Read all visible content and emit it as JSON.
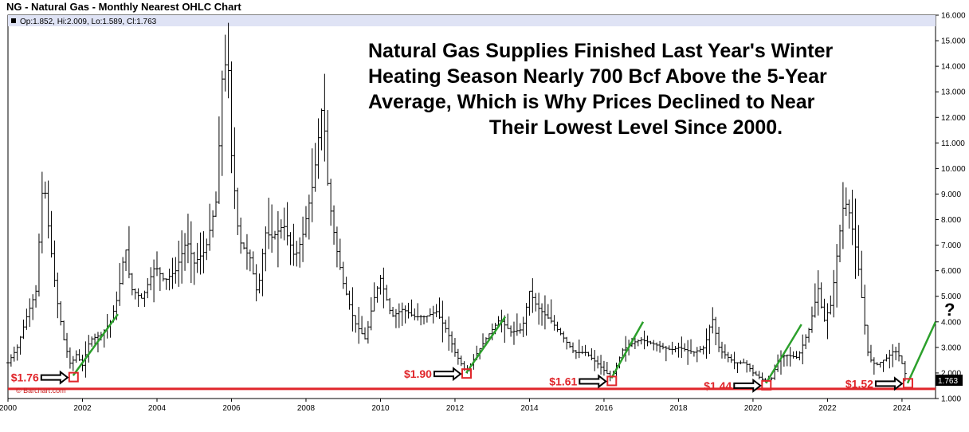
{
  "header": {
    "title": "NG - Natural Gas - Monthly Nearest OHLC Chart",
    "ohlc_readout": "Op:1.852, Hi:2.009, Lo:1.589, Cl:1.763",
    "watermark": "© Barchart.com"
  },
  "headline": {
    "line1": "Natural Gas Supplies Finished Last Year's Winter",
    "line2": "Heating Season Nearly 700 Bcf Above the 5-Year",
    "line3": "Average, Which is Why Prices Declined to Near",
    "line4": "Their Lowest Level Since 2000."
  },
  "colors": {
    "bars": "#000000",
    "support_line": "#e0262b",
    "trend": "#2ca02c",
    "labels": "#e0262b",
    "legend_bg": "#dfe3f5"
  },
  "chart_data": {
    "type": "ohlc",
    "title": "NG - Natural Gas - Monthly Nearest OHLC Chart",
    "xlabel": "",
    "ylabel": "",
    "xlim": [
      2000.0,
      2024.9
    ],
    "ylim": [
      1.0,
      16.0
    ],
    "yticks": [
      "1.000",
      "2.000",
      "3.000",
      "4.000",
      "5.000",
      "6.000",
      "7.000",
      "8.000",
      "9.000",
      "10.000",
      "11.000",
      "12.000",
      "13.000",
      "14.000",
      "15.000",
      "16.000"
    ],
    "xticks": [
      "2000",
      "2002",
      "2004",
      "2006",
      "2008",
      "2010",
      "2012",
      "2014",
      "2016",
      "2018",
      "2020",
      "2022",
      "2024"
    ],
    "last_price": "1.763",
    "support_level": 1.44,
    "grid": false,
    "series": [
      {
        "t": 2000.0,
        "v": 2.4
      },
      {
        "t": 2000.25,
        "v": 3.0
      },
      {
        "t": 2000.5,
        "v": 4.2
      },
      {
        "t": 2000.75,
        "v": 5.2
      },
      {
        "t": 2000.95,
        "v": 9.8
      },
      {
        "t": 2001.1,
        "v": 7.5
      },
      {
        "t": 2001.3,
        "v": 5.0
      },
      {
        "t": 2001.5,
        "v": 3.3
      },
      {
        "t": 2001.7,
        "v": 2.2
      },
      {
        "t": 2001.8,
        "v": 2.8
      },
      {
        "t": 2002.0,
        "v": 2.3
      },
      {
        "t": 2002.2,
        "v": 3.3
      },
      {
        "t": 2002.5,
        "v": 3.5
      },
      {
        "t": 2002.75,
        "v": 4.0
      },
      {
        "t": 2002.95,
        "v": 5.0
      },
      {
        "t": 2003.15,
        "v": 7.0
      },
      {
        "t": 2003.3,
        "v": 5.3
      },
      {
        "t": 2003.6,
        "v": 4.9
      },
      {
        "t": 2003.95,
        "v": 6.2
      },
      {
        "t": 2004.2,
        "v": 5.6
      },
      {
        "t": 2004.5,
        "v": 6.0
      },
      {
        "t": 2004.8,
        "v": 7.2
      },
      {
        "t": 2005.0,
        "v": 6.3
      },
      {
        "t": 2005.3,
        "v": 6.8
      },
      {
        "t": 2005.6,
        "v": 8.8
      },
      {
        "t": 2005.75,
        "v": 13.5
      },
      {
        "t": 2005.9,
        "v": 14.5
      },
      {
        "t": 2006.0,
        "v": 10.5
      },
      {
        "t": 2006.2,
        "v": 7.2
      },
      {
        "t": 2006.5,
        "v": 6.5
      },
      {
        "t": 2006.7,
        "v": 5.0
      },
      {
        "t": 2006.9,
        "v": 7.5
      },
      {
        "t": 2007.1,
        "v": 7.3
      },
      {
        "t": 2007.4,
        "v": 7.8
      },
      {
        "t": 2007.7,
        "v": 6.5
      },
      {
        "t": 2007.9,
        "v": 7.3
      },
      {
        "t": 2008.2,
        "v": 9.5
      },
      {
        "t": 2008.45,
        "v": 12.7
      },
      {
        "t": 2008.6,
        "v": 9.0
      },
      {
        "t": 2008.8,
        "v": 7.0
      },
      {
        "t": 2009.0,
        "v": 5.5
      },
      {
        "t": 2009.3,
        "v": 4.0
      },
      {
        "t": 2009.6,
        "v": 3.3
      },
      {
        "t": 2009.8,
        "v": 4.8
      },
      {
        "t": 2010.0,
        "v": 5.7
      },
      {
        "t": 2010.3,
        "v": 4.2
      },
      {
        "t": 2010.6,
        "v": 4.5
      },
      {
        "t": 2010.9,
        "v": 4.2
      },
      {
        "t": 2011.2,
        "v": 4.2
      },
      {
        "t": 2011.5,
        "v": 4.4
      },
      {
        "t": 2011.8,
        "v": 3.6
      },
      {
        "t": 2012.0,
        "v": 2.8
      },
      {
        "t": 2012.3,
        "v": 2.0
      },
      {
        "t": 2012.6,
        "v": 2.8
      },
      {
        "t": 2012.9,
        "v": 3.5
      },
      {
        "t": 2013.2,
        "v": 4.1
      },
      {
        "t": 2013.5,
        "v": 3.6
      },
      {
        "t": 2013.8,
        "v": 3.7
      },
      {
        "t": 2014.0,
        "v": 5.2
      },
      {
        "t": 2014.2,
        "v": 4.6
      },
      {
        "t": 2014.6,
        "v": 4.0
      },
      {
        "t": 2014.9,
        "v": 3.4
      },
      {
        "t": 2015.2,
        "v": 2.8
      },
      {
        "t": 2015.5,
        "v": 2.8
      },
      {
        "t": 2015.8,
        "v": 2.4
      },
      {
        "t": 2016.0,
        "v": 2.1
      },
      {
        "t": 2016.2,
        "v": 1.8
      },
      {
        "t": 2016.5,
        "v": 2.9
      },
      {
        "t": 2016.8,
        "v": 3.2
      },
      {
        "t": 2017.0,
        "v": 3.3
      },
      {
        "t": 2017.4,
        "v": 3.1
      },
      {
        "t": 2017.8,
        "v": 2.9
      },
      {
        "t": 2018.0,
        "v": 3.0
      },
      {
        "t": 2018.4,
        "v": 2.8
      },
      {
        "t": 2018.7,
        "v": 3.0
      },
      {
        "t": 2018.9,
        "v": 4.2
      },
      {
        "t": 2019.1,
        "v": 2.9
      },
      {
        "t": 2019.5,
        "v": 2.4
      },
      {
        "t": 2019.8,
        "v": 2.4
      },
      {
        "t": 2020.0,
        "v": 2.0
      },
      {
        "t": 2020.3,
        "v": 1.7
      },
      {
        "t": 2020.5,
        "v": 1.8
      },
      {
        "t": 2020.7,
        "v": 2.6
      },
      {
        "t": 2020.9,
        "v": 2.7
      },
      {
        "t": 2021.2,
        "v": 2.6
      },
      {
        "t": 2021.5,
        "v": 3.7
      },
      {
        "t": 2021.75,
        "v": 5.3
      },
      {
        "t": 2021.9,
        "v": 4.0
      },
      {
        "t": 2022.1,
        "v": 4.7
      },
      {
        "t": 2022.3,
        "v": 7.2
      },
      {
        "t": 2022.45,
        "v": 8.8
      },
      {
        "t": 2022.6,
        "v": 8.2
      },
      {
        "t": 2022.8,
        "v": 6.5
      },
      {
        "t": 2022.95,
        "v": 4.5
      },
      {
        "t": 2023.1,
        "v": 2.6
      },
      {
        "t": 2023.3,
        "v": 2.3
      },
      {
        "t": 2023.6,
        "v": 2.6
      },
      {
        "t": 2023.8,
        "v": 2.9
      },
      {
        "t": 2023.95,
        "v": 2.6
      },
      {
        "t": 2024.1,
        "v": 1.9
      },
      {
        "t": 2024.15,
        "v": 1.76
      }
    ],
    "bottoms": [
      {
        "label": "$1.76",
        "t": 2001.75,
        "v": 1.76
      },
      {
        "label": "$1.90",
        "t": 2012.3,
        "v": 1.9
      },
      {
        "label": "$1.61",
        "t": 2016.2,
        "v": 1.61
      },
      {
        "label": "$1.44",
        "t": 2020.35,
        "v": 1.44
      },
      {
        "label": "$1.52",
        "t": 2024.15,
        "v": 1.52
      }
    ],
    "trendlines": [
      {
        "t1": 2001.75,
        "v1": 1.9,
        "t2": 2002.95,
        "v2": 4.3
      },
      {
        "t1": 2012.3,
        "v1": 2.0,
        "t2": 2013.35,
        "v2": 4.2
      },
      {
        "t1": 2016.2,
        "v1": 1.8,
        "t2": 2017.05,
        "v2": 4.0
      },
      {
        "t1": 2020.35,
        "v1": 1.6,
        "t2": 2021.3,
        "v2": 3.9
      },
      {
        "t1": 2024.15,
        "v1": 1.6,
        "t2": 2024.9,
        "v2": 4.0
      }
    ],
    "question_mark": "?"
  }
}
